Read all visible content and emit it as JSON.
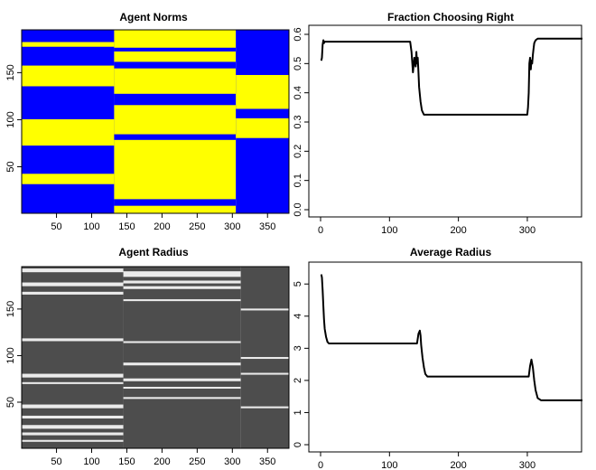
{
  "chart_data": [
    {
      "type": "heatmap",
      "title": "Agent Norms",
      "xlabel": "",
      "ylabel": "",
      "xlim": [
        1,
        380
      ],
      "ylim": [
        1,
        195
      ],
      "x_ticks": [
        50,
        100,
        150,
        200,
        250,
        300,
        350
      ],
      "y_ticks": [
        50,
        100,
        150
      ],
      "colors": {
        "low": "#0000ff",
        "high": "#ffff00"
      },
      "phases": [
        {
          "x_range": [
            1,
            132
          ],
          "high_bands": [
            [
              182,
              178
            ],
            [
              157,
              136
            ],
            [
              100,
              73
            ],
            [
              42,
              32
            ]
          ]
        },
        {
          "x_range": [
            132,
            305
          ],
          "high_bands": [
            [
              195,
              177
            ],
            [
              172,
              162
            ],
            [
              154,
              128
            ],
            [
              115,
              85
            ],
            [
              78,
              16
            ],
            [
              8,
              1
            ]
          ]
        },
        {
          "x_range": [
            305,
            380
          ],
          "high_bands": [
            [
              147,
              112
            ],
            [
              101,
              81
            ]
          ]
        }
      ]
    },
    {
      "type": "line",
      "title": "Fraction Choosing Right",
      "xlabel": "",
      "ylabel": "",
      "xlim": [
        0,
        380
      ],
      "ylim": [
        0,
        0.6
      ],
      "x_ticks": [
        0,
        100,
        200,
        300
      ],
      "y_ticks": [
        0,
        0.1,
        0.2,
        0.3,
        0.4,
        0.5,
        0.6
      ],
      "y_tick_labels": [
        "0.0",
        "0.1",
        "0.2",
        "0.3",
        "0.4",
        "0.5",
        "0.6"
      ],
      "x": [
        1,
        2,
        3,
        4,
        5,
        6,
        8,
        10,
        130,
        132,
        134,
        136,
        138,
        139,
        140,
        141,
        142,
        143,
        145,
        147,
        149,
        150,
        200,
        250,
        300,
        301,
        302,
        303,
        304,
        305,
        306,
        307,
        308,
        309,
        310,
        312,
        315,
        320,
        330,
        380
      ],
      "y": [
        0.51,
        0.52,
        0.565,
        0.58,
        0.57,
        0.575,
        0.575,
        0.575,
        0.575,
        0.54,
        0.47,
        0.52,
        0.49,
        0.54,
        0.5,
        0.52,
        0.47,
        0.42,
        0.37,
        0.34,
        0.33,
        0.325,
        0.325,
        0.325,
        0.325,
        0.35,
        0.4,
        0.5,
        0.52,
        0.48,
        0.51,
        0.5,
        0.53,
        0.55,
        0.57,
        0.58,
        0.585,
        0.585,
        0.585,
        0.585
      ]
    },
    {
      "type": "heatmap",
      "title": "Agent Radius",
      "xlabel": "",
      "ylabel": "",
      "xlim": [
        1,
        380
      ],
      "ylim": [
        1,
        195
      ],
      "x_ticks": [
        50,
        100,
        150,
        200,
        250,
        300,
        350
      ],
      "y_ticks": [
        50,
        100,
        150
      ],
      "colors": {
        "low": "#4d4d4d",
        "high": "#ebebeb"
      },
      "phases": [
        {
          "x_range": [
            1,
            145
          ],
          "light_bands": [
            [
              193,
              190
            ],
            [
              178,
              175
            ],
            [
              168,
              166
            ],
            [
              118,
              116
            ],
            [
              80,
              77
            ],
            [
              71,
              70
            ],
            [
              47,
              44
            ],
            [
              35,
              33
            ],
            [
              25,
              22
            ],
            [
              17,
              15
            ],
            [
              9,
              8
            ]
          ]
        },
        {
          "x_range": [
            145,
            312
          ],
          "light_bands": [
            [
              190,
              185
            ],
            [
              180,
              178
            ],
            [
              174,
              172
            ],
            [
              160,
              159
            ],
            [
              115,
              114
            ],
            [
              92,
              90
            ],
            [
              75,
              73
            ],
            [
              66,
              65
            ],
            [
              55,
              54
            ]
          ]
        },
        {
          "x_range": [
            312,
            380
          ],
          "light_bands": [
            [
              150,
              149
            ],
            [
              98,
              97
            ],
            [
              81,
              80
            ],
            [
              45,
              44
            ]
          ]
        }
      ]
    },
    {
      "type": "line",
      "title": "Average Radius",
      "xlabel": "",
      "ylabel": "",
      "xlim": [
        0,
        380
      ],
      "ylim": [
        0,
        5.4
      ],
      "x_ticks": [
        0,
        100,
        200,
        300
      ],
      "y_ticks": [
        0,
        1,
        2,
        3,
        4,
        5
      ],
      "x": [
        1,
        2,
        3,
        4,
        5,
        6,
        8,
        10,
        12,
        15,
        20,
        50,
        100,
        140,
        142,
        144,
        145,
        146,
        148,
        150,
        152,
        155,
        160,
        200,
        250,
        302,
        304,
        306,
        308,
        310,
        312,
        315,
        320,
        330,
        380
      ],
      "y": [
        5.3,
        5.2,
        4.8,
        4.3,
        3.9,
        3.6,
        3.35,
        3.2,
        3.15,
        3.15,
        3.15,
        3.15,
        3.15,
        3.15,
        3.45,
        3.55,
        3.4,
        3.1,
        2.7,
        2.4,
        2.2,
        2.12,
        2.12,
        2.12,
        2.12,
        2.12,
        2.45,
        2.65,
        2.4,
        2.0,
        1.7,
        1.45,
        1.38,
        1.38,
        1.38
      ]
    }
  ]
}
